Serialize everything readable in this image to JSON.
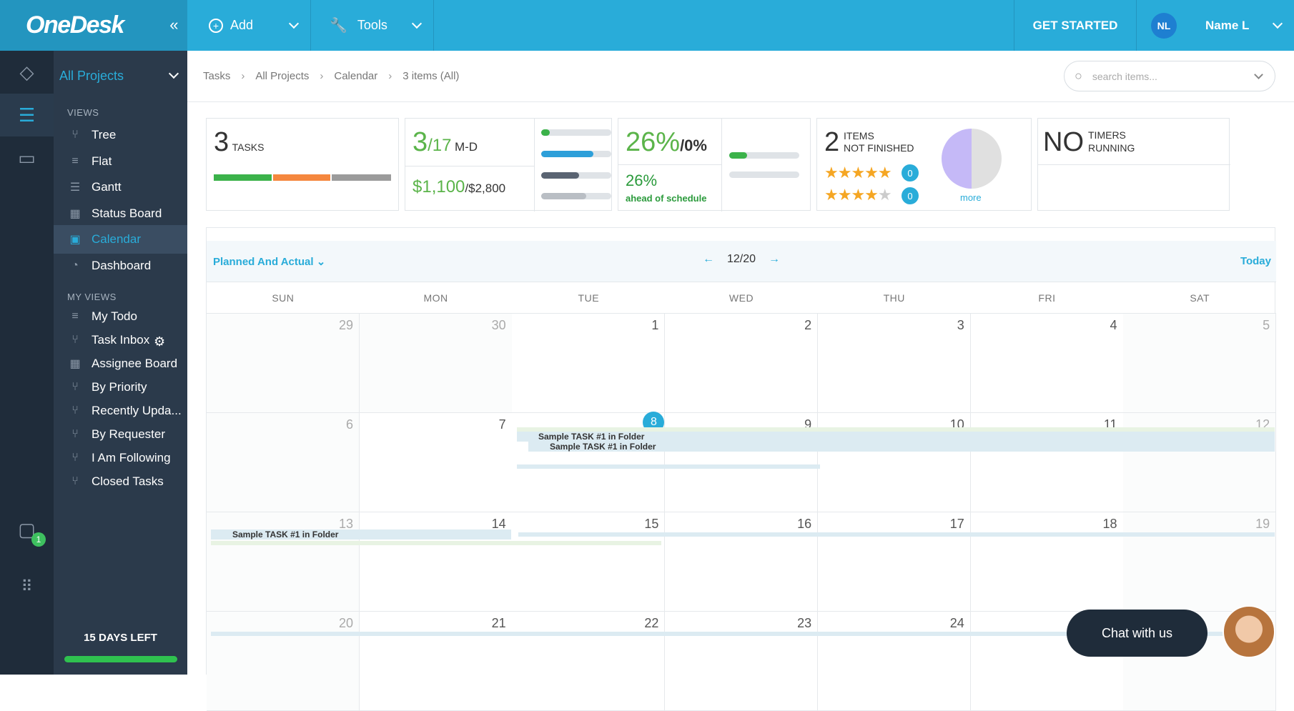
{
  "header": {
    "logo": "OneDesk",
    "collapse": "«",
    "add": "Add",
    "tools": "Tools",
    "get_started": "GET STARTED",
    "avatar_initials": "NL",
    "user_name": "Name L"
  },
  "sidebar": {
    "project": "All Projects",
    "views_label": "VIEWS",
    "views": [
      {
        "label": "Tree",
        "icon": "tree-icon"
      },
      {
        "label": "Flat",
        "icon": "list-icon"
      },
      {
        "label": "Gantt",
        "icon": "gantt-icon"
      },
      {
        "label": "Status Board",
        "icon": "board-icon"
      },
      {
        "label": "Calendar",
        "icon": "calendar-icon",
        "active": true
      },
      {
        "label": "Dashboard",
        "icon": "pie-icon"
      }
    ],
    "my_views_label": "MY VIEWS",
    "my_views": [
      {
        "label": "My Todo",
        "icon": "list-icon"
      },
      {
        "label": "Task Inbox",
        "icon": "tree-icon"
      },
      {
        "label": "Assignee Board",
        "icon": "board-icon"
      },
      {
        "label": "By Priority",
        "icon": "tree-icon"
      },
      {
        "label": "Recently Upda...",
        "icon": "tree-icon"
      },
      {
        "label": "By Requester",
        "icon": "tree-icon"
      },
      {
        "label": "I Am Following",
        "icon": "tree-icon"
      },
      {
        "label": "Closed Tasks",
        "icon": "tree-icon"
      }
    ],
    "trial": "15 DAYS LEFT",
    "chat_badge": "1"
  },
  "breadcrumb": {
    "items": [
      "Tasks",
      "All Projects",
      "Calendar",
      "3 items (All)"
    ],
    "search_placeholder": "search items..."
  },
  "summary": {
    "tasks_count": "3",
    "tasks_label": "TASKS",
    "tasks_bar": [
      {
        "color": "#3bb24a",
        "fraction": 0.33
      },
      {
        "color": "#f5873e",
        "fraction": 0.33
      },
      {
        "color": "#9b9b9b",
        "fraction": 0.34
      }
    ],
    "md_done": "3",
    "md_total": "/17",
    "md_unit": "M-D",
    "cost_done": "$1,100",
    "cost_total": "/$2,800",
    "pct_done": "26%",
    "pct_planned": "/0%",
    "pct_schedule": "26%",
    "schedule_label": "ahead of schedule",
    "items_count": "2",
    "items_label1": "ITEMS",
    "items_label2": "NOT FINISHED",
    "stars_row1": "★★★★★",
    "stars_row1_count": "0",
    "stars_row2": "★★★★",
    "stars_row2_empty": "★",
    "stars_row2_count": "0",
    "more": "more",
    "timers_big": "NO",
    "timers_label1": "TIMERS",
    "timers_label2": "RUNNING"
  },
  "calendar": {
    "mode": "Planned And Actual",
    "month": "12/20",
    "today": "Today",
    "days_of_week": [
      "SUN",
      "MON",
      "TUE",
      "WED",
      "THU",
      "FRI",
      "SAT"
    ],
    "weeks": [
      [
        "29",
        "30",
        "1",
        "2",
        "3",
        "4",
        "5"
      ],
      [
        "6",
        "7",
        "8",
        "9",
        "10",
        "11",
        "12"
      ],
      [
        "13",
        "14",
        "15",
        "16",
        "17",
        "18",
        "19"
      ],
      [
        "20",
        "21",
        "22",
        "23",
        "24",
        "",
        ""
      ]
    ],
    "today_date": "8",
    "task_label": "Sample TASK #1 in Folder"
  },
  "chat": {
    "label": "Chat with us"
  }
}
